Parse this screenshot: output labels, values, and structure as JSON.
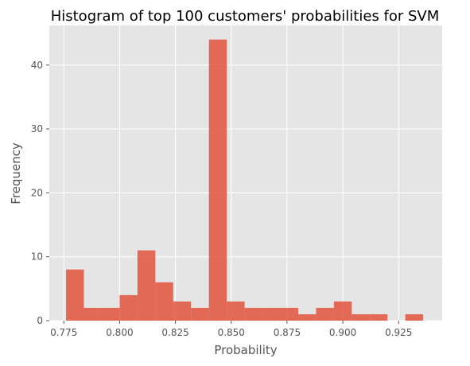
{
  "chart_data": {
    "type": "bar",
    "title": "Histogram of top 100 customers' probabilities for SVM",
    "xlabel": "Probability",
    "ylabel": "Frequency",
    "xlim": [
      0.7685,
      0.9445
    ],
    "ylim": [
      0,
      46.2
    ],
    "grid": true,
    "colors": {
      "bar": "#E24A33",
      "background": "#E5E5E5",
      "grid": "#FFFFFF",
      "tick": "#555555"
    },
    "x_ticks": [
      0.775,
      0.8,
      0.825,
      0.85,
      0.875,
      0.9,
      0.925
    ],
    "x_tick_labels": [
      "0.775",
      "0.800",
      "0.825",
      "0.850",
      "0.875",
      "0.900",
      "0.925"
    ],
    "y_ticks": [
      0,
      10,
      20,
      30,
      40
    ],
    "y_tick_labels": [
      "0",
      "10",
      "20",
      "30",
      "40"
    ],
    "bins": [
      {
        "x0": 0.776,
        "x1": 0.784,
        "value": 8
      },
      {
        "x0": 0.784,
        "x1": 0.792,
        "value": 2
      },
      {
        "x0": 0.792,
        "x1": 0.8,
        "value": 2
      },
      {
        "x0": 0.8,
        "x1": 0.808,
        "value": 4
      },
      {
        "x0": 0.808,
        "x1": 0.816,
        "value": 11
      },
      {
        "x0": 0.816,
        "x1": 0.824,
        "value": 6
      },
      {
        "x0": 0.824,
        "x1": 0.832,
        "value": 3
      },
      {
        "x0": 0.832,
        "x1": 0.84,
        "value": 2
      },
      {
        "x0": 0.84,
        "x1": 0.848,
        "value": 44
      },
      {
        "x0": 0.848,
        "x1": 0.856,
        "value": 3
      },
      {
        "x0": 0.856,
        "x1": 0.864,
        "value": 2
      },
      {
        "x0": 0.864,
        "x1": 0.872,
        "value": 2
      },
      {
        "x0": 0.872,
        "x1": 0.88,
        "value": 2
      },
      {
        "x0": 0.88,
        "x1": 0.888,
        "value": 1
      },
      {
        "x0": 0.888,
        "x1": 0.896,
        "value": 2
      },
      {
        "x0": 0.896,
        "x1": 0.904,
        "value": 3
      },
      {
        "x0": 0.904,
        "x1": 0.912,
        "value": 1
      },
      {
        "x0": 0.912,
        "x1": 0.92,
        "value": 1
      },
      {
        "x0": 0.92,
        "x1": 0.928,
        "value": 0
      },
      {
        "x0": 0.928,
        "x1": 0.936,
        "value": 1
      }
    ]
  }
}
